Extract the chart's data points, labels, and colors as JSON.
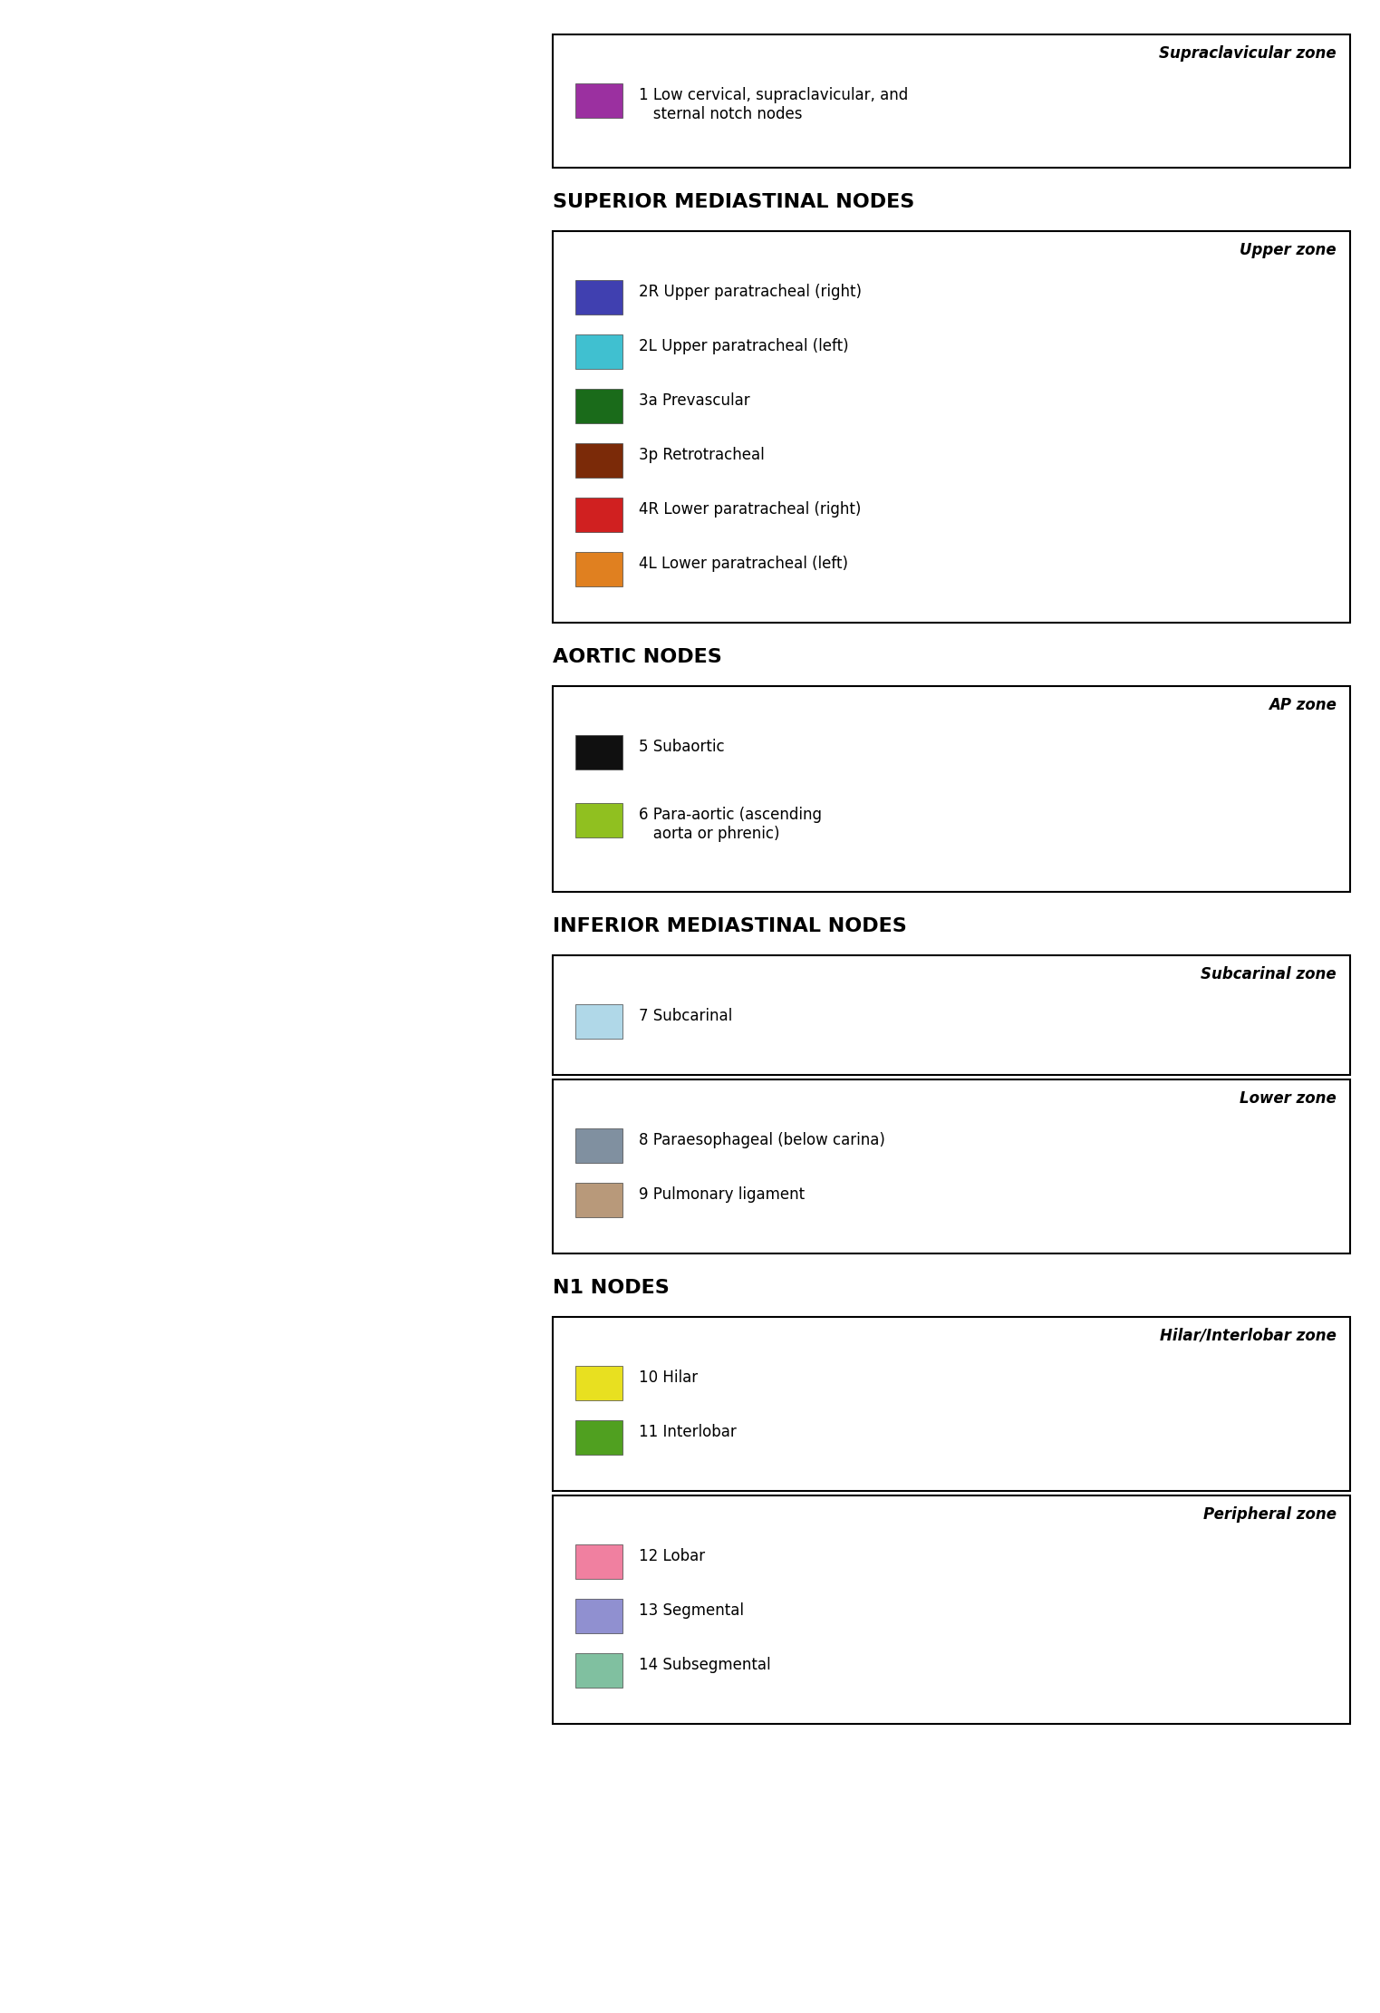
{
  "background_color": "#ffffff",
  "supraclavicular_zone": {
    "zone_label": "Supraclavicular zone",
    "items": [
      {
        "color": "#9B30A0",
        "label": "1 Low cervical, supraclavicular, and\n   sternal notch nodes"
      }
    ]
  },
  "superior_mediastinal_header": "SUPERIOR MEDIASTINAL NODES",
  "superior_mediastinal_zone": {
    "zone_label": "Upper zone",
    "items": [
      {
        "color": "#4040B0",
        "label": "2R Upper paratracheal (right)"
      },
      {
        "color": "#40C0D0",
        "label": "2L Upper paratracheal (left)"
      },
      {
        "color": "#1A6B1A",
        "label": "3a Prevascular"
      },
      {
        "color": "#7B2A08",
        "label": "3p Retrotracheal"
      },
      {
        "color": "#D02020",
        "label": "4R Lower paratracheal (right)"
      },
      {
        "color": "#E08020",
        "label": "4L Lower paratracheal (left)"
      }
    ]
  },
  "aortic_header": "AORTIC NODES",
  "aortic_zone": {
    "zone_label": "AP zone",
    "items": [
      {
        "color": "#101010",
        "label": "5 Subaortic"
      },
      {
        "color": "#90C020",
        "label": "6 Para-aortic (ascending\n   aorta or phrenic)"
      }
    ]
  },
  "inferior_mediastinal_header": "INFERIOR MEDIASTINAL NODES",
  "subcarinal_zone": {
    "zone_label": "Subcarinal zone",
    "items": [
      {
        "color": "#B0D8E8",
        "label": "7 Subcarinal"
      }
    ]
  },
  "lower_zone": {
    "zone_label": "Lower zone",
    "items": [
      {
        "color": "#8090A0",
        "label": "8 Paraesophageal (below carina)"
      },
      {
        "color": "#B8997A",
        "label": "9 Pulmonary ligament"
      }
    ]
  },
  "n1_header": "N1 NODES",
  "hilar_zone": {
    "zone_label": "Hilar/Interlobar zone",
    "items": [
      {
        "color": "#E8E020",
        "label": "10 Hilar"
      },
      {
        "color": "#50A020",
        "label": "11 Interlobar"
      }
    ]
  },
  "peripheral_zone": {
    "zone_label": "Peripheral zone",
    "items": [
      {
        "color": "#F080A0",
        "label": "12 Lobar"
      },
      {
        "color": "#9090D0",
        "label": "13 Segmental"
      },
      {
        "color": "#80C0A0",
        "label": "14 Subsegmental"
      }
    ]
  },
  "box_edge_color": "#000000",
  "header_fontsize": 14,
  "zone_label_fontsize": 12,
  "item_fontsize": 12
}
